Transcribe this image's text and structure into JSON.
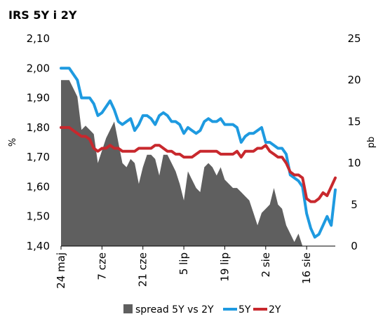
{
  "chart_data": {
    "type": "line",
    "title": "IRS 5Y i 2Y",
    "ylabel_left": "%",
    "ylabel_right": "pb",
    "ylim_left": [
      1.4,
      2.1
    ],
    "ylim_right": [
      0,
      25
    ],
    "y_ticks_left": [
      "1,40",
      "1,50",
      "1,60",
      "1,70",
      "1,80",
      "1,90",
      "2,00",
      "2,10"
    ],
    "y_ticks_right": [
      "0",
      "5",
      "10",
      "15",
      "20",
      "25"
    ],
    "x_ticks": [
      "24 maj",
      "7 cze",
      "21 cze",
      "5 lip",
      "19 lip",
      "2 sie",
      "16 sie"
    ],
    "legend_position": "bottom",
    "n_points": 68,
    "series": [
      {
        "name": "spread 5Y vs 2Y",
        "kind": "area",
        "axis": "right",
        "color": "#5f5f5f",
        "values": [
          20.0,
          20.0,
          20.0,
          19.0,
          18.0,
          14.0,
          14.5,
          14.0,
          13.5,
          10.0,
          11.5,
          13.0,
          14.0,
          15.0,
          12.5,
          10.0,
          9.5,
          10.5,
          10.0,
          7.5,
          9.5,
          11.0,
          11.0,
          10.5,
          8.5,
          11.0,
          11.0,
          10.0,
          9.0,
          7.5,
          5.5,
          9.0,
          8.0,
          7.0,
          6.5,
          9.5,
          10.0,
          9.5,
          8.5,
          9.5,
          8.0,
          7.5,
          7.0,
          7.0,
          6.5,
          6.0,
          5.5,
          4.0,
          2.5,
          4.0,
          4.5,
          5.0,
          7.0,
          5.0,
          4.5,
          2.5,
          1.5,
          0.5,
          1.5,
          0.0,
          0.0,
          0.0,
          0.0,
          0.0,
          0.0,
          0.0,
          0.0,
          0.0
        ]
      },
      {
        "name": "5Y",
        "kind": "line",
        "axis": "left",
        "color": "#1e9ae0",
        "values": [
          2.0,
          2.0,
          2.0,
          1.98,
          1.96,
          1.9,
          1.9,
          1.9,
          1.88,
          1.84,
          1.85,
          1.87,
          1.89,
          1.86,
          1.82,
          1.81,
          1.82,
          1.83,
          1.79,
          1.81,
          1.84,
          1.84,
          1.83,
          1.81,
          1.84,
          1.85,
          1.84,
          1.82,
          1.82,
          1.81,
          1.78,
          1.8,
          1.79,
          1.78,
          1.79,
          1.82,
          1.83,
          1.82,
          1.82,
          1.83,
          1.81,
          1.81,
          1.81,
          1.8,
          1.75,
          1.77,
          1.78,
          1.78,
          1.79,
          1.8,
          1.75,
          1.75,
          1.74,
          1.73,
          1.73,
          1.71,
          1.64,
          1.63,
          1.62,
          1.6,
          1.51,
          1.46,
          1.43,
          1.44,
          1.47,
          1.5,
          1.47,
          1.59
        ]
      },
      {
        "name": "2Y",
        "kind": "line",
        "axis": "left",
        "color": "#c8282d",
        "values": [
          1.8,
          1.8,
          1.8,
          1.79,
          1.78,
          1.77,
          1.77,
          1.76,
          1.73,
          1.72,
          1.73,
          1.73,
          1.74,
          1.73,
          1.73,
          1.72,
          1.72,
          1.72,
          1.72,
          1.73,
          1.73,
          1.73,
          1.73,
          1.74,
          1.74,
          1.73,
          1.72,
          1.72,
          1.71,
          1.71,
          1.7,
          1.7,
          1.7,
          1.71,
          1.72,
          1.72,
          1.72,
          1.72,
          1.72,
          1.71,
          1.71,
          1.71,
          1.71,
          1.72,
          1.7,
          1.72,
          1.72,
          1.72,
          1.73,
          1.73,
          1.74,
          1.72,
          1.71,
          1.7,
          1.7,
          1.68,
          1.65,
          1.64,
          1.64,
          1.63,
          1.56,
          1.55,
          1.55,
          1.56,
          1.58,
          1.57,
          1.6,
          1.63
        ]
      }
    ]
  }
}
